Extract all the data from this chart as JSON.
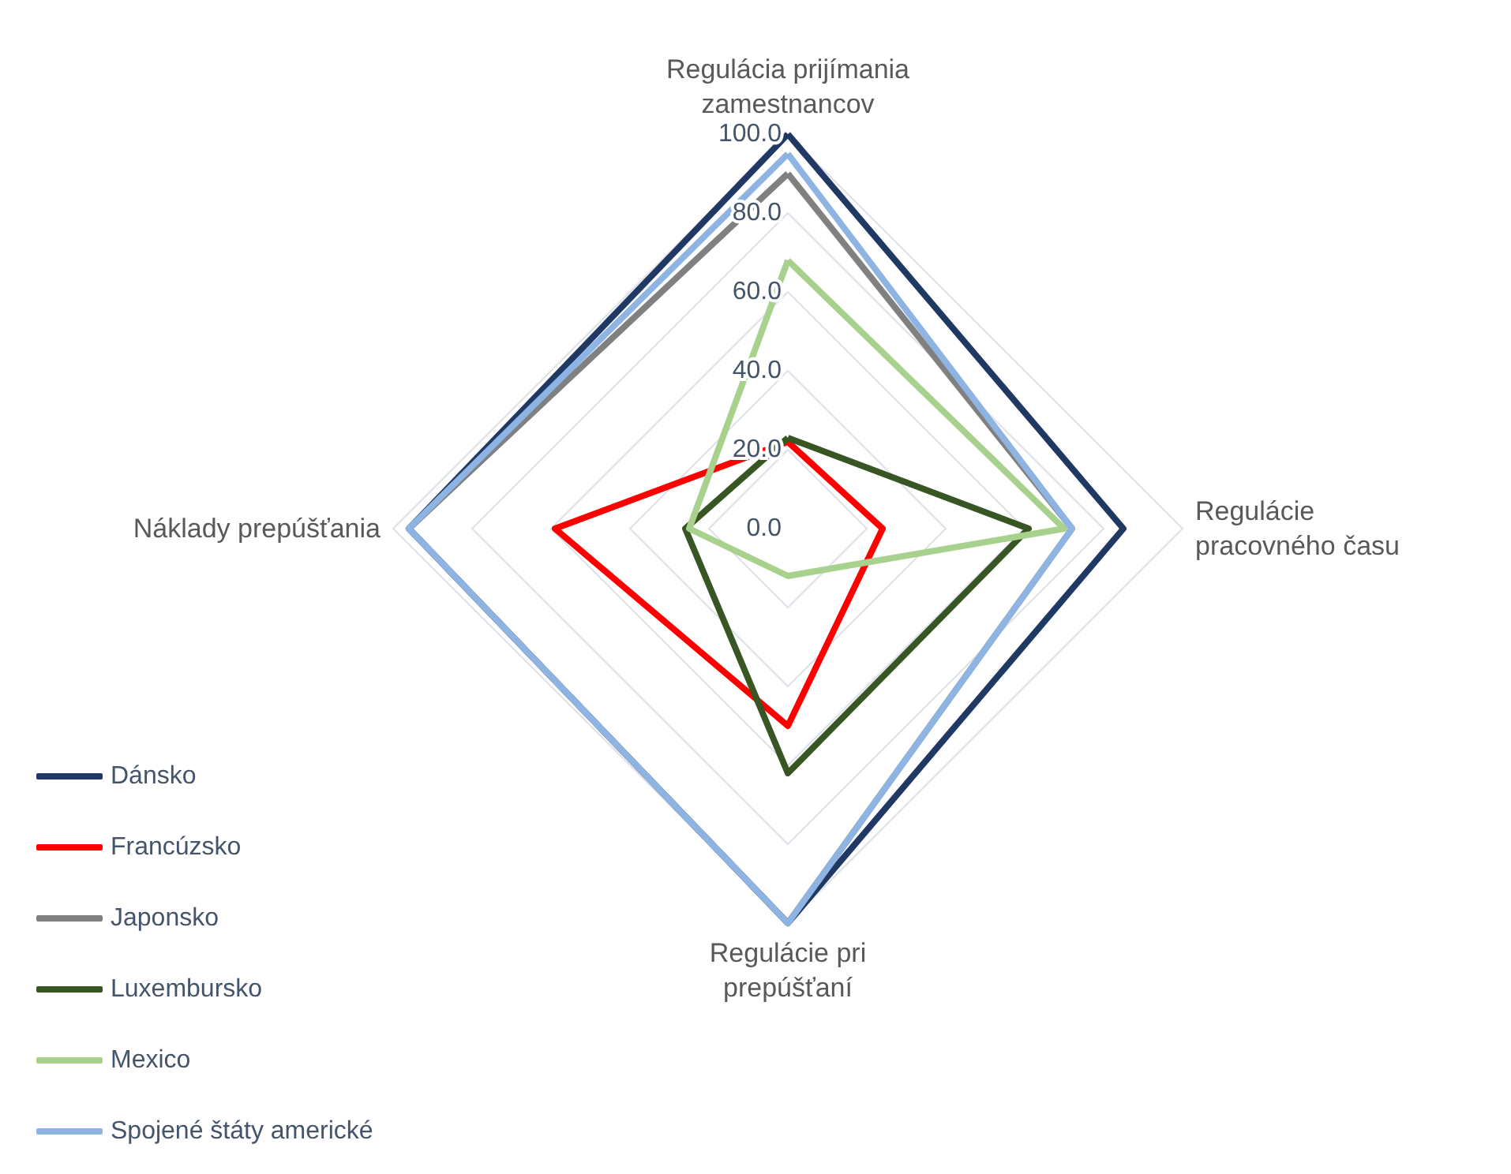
{
  "chart_data": {
    "type": "radar",
    "categories": [
      "Regulácia prijímania zamestnancov",
      "Regulácie pracovného času",
      "Regulácie pri prepúšťaní",
      "Náklady prepúšťania"
    ],
    "ylim": [
      0,
      100
    ],
    "yticks": [
      {
        "value": 0,
        "label": "0.0"
      },
      {
        "value": 20,
        "label": "20.0"
      },
      {
        "value": 40,
        "label": "40.0"
      },
      {
        "value": 60,
        "label": "60.0"
      },
      {
        "value": 80,
        "label": "80.0"
      },
      {
        "value": 100,
        "label": "100.0"
      }
    ],
    "grid": true,
    "legend": "bottom left",
    "marker": "none",
    "line_style": "solid",
    "series": [
      {
        "name": "Dánsko",
        "color": "#1f3864",
        "values": [
          100,
          85,
          100,
          96
        ]
      },
      {
        "name": "Francúzsko",
        "color": "#ff0000",
        "values": [
          22,
          24,
          50,
          59
        ]
      },
      {
        "name": "Japonsko",
        "color": "#808080",
        "values": [
          90,
          72,
          100,
          96
        ]
      },
      {
        "name": "Luxembursko",
        "color": "#375623",
        "values": [
          23,
          61,
          62,
          26
        ]
      },
      {
        "name": "Mexico",
        "color": "#a9d18e",
        "values": [
          68,
          70,
          12,
          25
        ]
      },
      {
        "name": "Spojené štáty americké",
        "color": "#8db4e2",
        "values": [
          95,
          72,
          100,
          96
        ]
      }
    ]
  }
}
